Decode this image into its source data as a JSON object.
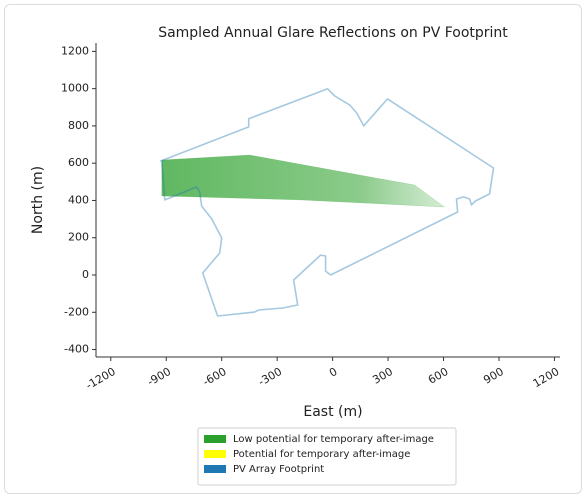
{
  "chart_data": {
    "type": "line",
    "title": "Sampled Annual Glare Reflections on PV Footprint",
    "xlabel": "East (m)",
    "ylabel": "North (m)",
    "xlim": [
      -1280,
      1230
    ],
    "ylim": [
      -440,
      1245
    ],
    "xticks": [
      -1200,
      -900,
      -600,
      -300,
      0,
      300,
      600,
      900,
      1200
    ],
    "yticks": [
      -400,
      -200,
      0,
      200,
      400,
      600,
      800,
      1000,
      1200
    ],
    "series": [
      {
        "name": "Low potential for temporary after-image",
        "color": "#2ca02c",
        "x": [
          -924,
          -449,
          443,
          605,
          -178,
          -924
        ],
        "y": [
          617,
          644,
          483,
          365,
          403,
          424
        ]
      },
      {
        "name": "Potential for temporary after-image",
        "color": "#ffff00",
        "x": [],
        "y": []
      },
      {
        "name": "PV Array Footprint",
        "color": "#1f77b4",
        "x": [
          -930,
          -454,
          -454,
          -27,
          11,
          92,
          130,
          168,
          297,
          870,
          849,
          773,
          751,
          741,
          708,
          670,
          676,
          -11,
          -38,
          -38,
          -65,
          -211,
          -189,
          -270,
          -400,
          -422,
          -622,
          -703,
          -611,
          -600,
          -654,
          -708,
          -719,
          -735,
          -908,
          -924
        ],
        "y": [
          612,
          795,
          838,
          999,
          961,
          913,
          870,
          800,
          945,
          574,
          435,
          397,
          376,
          408,
          419,
          408,
          338,
          0,
          21,
          102,
          107,
          -27,
          -161,
          -177,
          -188,
          -199,
          -220,
          11,
          118,
          199,
          301,
          370,
          446,
          472,
          403,
          612
        ]
      }
    ]
  }
}
